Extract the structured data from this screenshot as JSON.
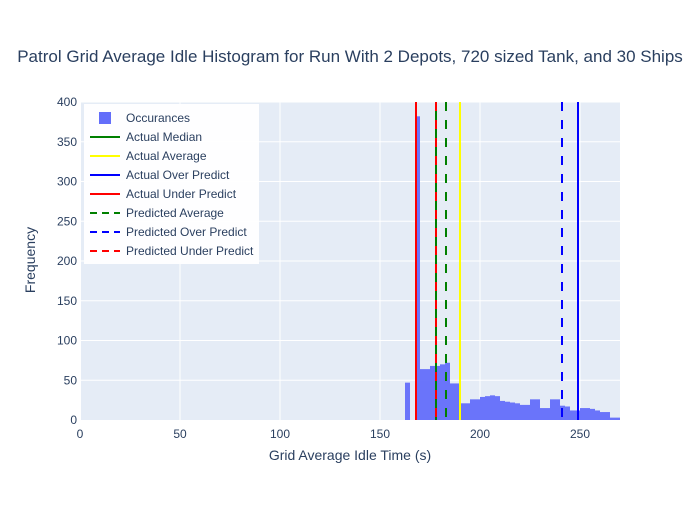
{
  "chart_data": {
    "type": "bar",
    "title": "Patrol Grid Average Idle Histogram for Run With 2 Depots, 720 sized Tank, and 30 Ships",
    "xlabel": "Grid Average Idle Time (s)",
    "ylabel": "Frequency",
    "xlim": [
      0,
      270
    ],
    "ylim": [
      0,
      400
    ],
    "x_ticks": [
      0,
      50,
      100,
      150,
      200,
      250
    ],
    "y_ticks": [
      0,
      50,
      100,
      150,
      200,
      250,
      300,
      350,
      400
    ],
    "grid": true,
    "legend_position": "top-left",
    "histogram": {
      "name": "Occurances",
      "color": "#636efa",
      "bin_width": 2.5,
      "bins": [
        {
          "x0": 162.5,
          "count": 47
        },
        {
          "x0": 165.0,
          "count": 0
        },
        {
          "x0": 167.5,
          "count": 382
        },
        {
          "x0": 170.0,
          "count": 64
        },
        {
          "x0": 172.5,
          "count": 64
        },
        {
          "x0": 175.0,
          "count": 68
        },
        {
          "x0": 177.5,
          "count": 68
        },
        {
          "x0": 180.0,
          "count": 70
        },
        {
          "x0": 182.5,
          "count": 72
        },
        {
          "x0": 185.0,
          "count": 46
        },
        {
          "x0": 187.5,
          "count": 46
        },
        {
          "x0": 190.0,
          "count": 21
        },
        {
          "x0": 192.5,
          "count": 21
        },
        {
          "x0": 195.0,
          "count": 26
        },
        {
          "x0": 197.5,
          "count": 26
        },
        {
          "x0": 200.0,
          "count": 29
        },
        {
          "x0": 202.5,
          "count": 30
        },
        {
          "x0": 205.0,
          "count": 31
        },
        {
          "x0": 207.5,
          "count": 30
        },
        {
          "x0": 210.0,
          "count": 24
        },
        {
          "x0": 212.5,
          "count": 23
        },
        {
          "x0": 215.0,
          "count": 22
        },
        {
          "x0": 217.5,
          "count": 21
        },
        {
          "x0": 220.0,
          "count": 19
        },
        {
          "x0": 222.5,
          "count": 19
        },
        {
          "x0": 225.0,
          "count": 26
        },
        {
          "x0": 227.5,
          "count": 26
        },
        {
          "x0": 230.0,
          "count": 15
        },
        {
          "x0": 232.5,
          "count": 15
        },
        {
          "x0": 235.0,
          "count": 26
        },
        {
          "x0": 237.5,
          "count": 26
        },
        {
          "x0": 240.0,
          "count": 18
        },
        {
          "x0": 242.5,
          "count": 17
        },
        {
          "x0": 245.0,
          "count": 12
        },
        {
          "x0": 247.5,
          "count": 12
        },
        {
          "x0": 250.0,
          "count": 15
        },
        {
          "x0": 252.5,
          "count": 15
        },
        {
          "x0": 255.0,
          "count": 14
        },
        {
          "x0": 257.5,
          "count": 12
        },
        {
          "x0": 260.0,
          "count": 10
        },
        {
          "x0": 262.5,
          "count": 10
        },
        {
          "x0": 265.0,
          "count": 3
        },
        {
          "x0": 267.5,
          "count": 3
        }
      ]
    },
    "lines": [
      {
        "name": "Actual Median",
        "x": 178,
        "color": "#008000",
        "dash": "solid"
      },
      {
        "name": "Actual Average",
        "x": 190,
        "color": "#ffff00",
        "dash": "solid"
      },
      {
        "name": "Actual Over Predict",
        "x": 249,
        "color": "#0000ff",
        "dash": "solid"
      },
      {
        "name": "Actual Under Predict",
        "x": 168,
        "color": "#ff0000",
        "dash": "solid"
      },
      {
        "name": "Predicted Average",
        "x": 183,
        "color": "#008000",
        "dash": "dashed"
      },
      {
        "name": "Predicted Over Predict",
        "x": 241,
        "color": "#0000ff",
        "dash": "dashed"
      },
      {
        "name": "Predicted Under Predict",
        "x": 178,
        "color": "#ff0000",
        "dash": "dashed"
      }
    ]
  }
}
